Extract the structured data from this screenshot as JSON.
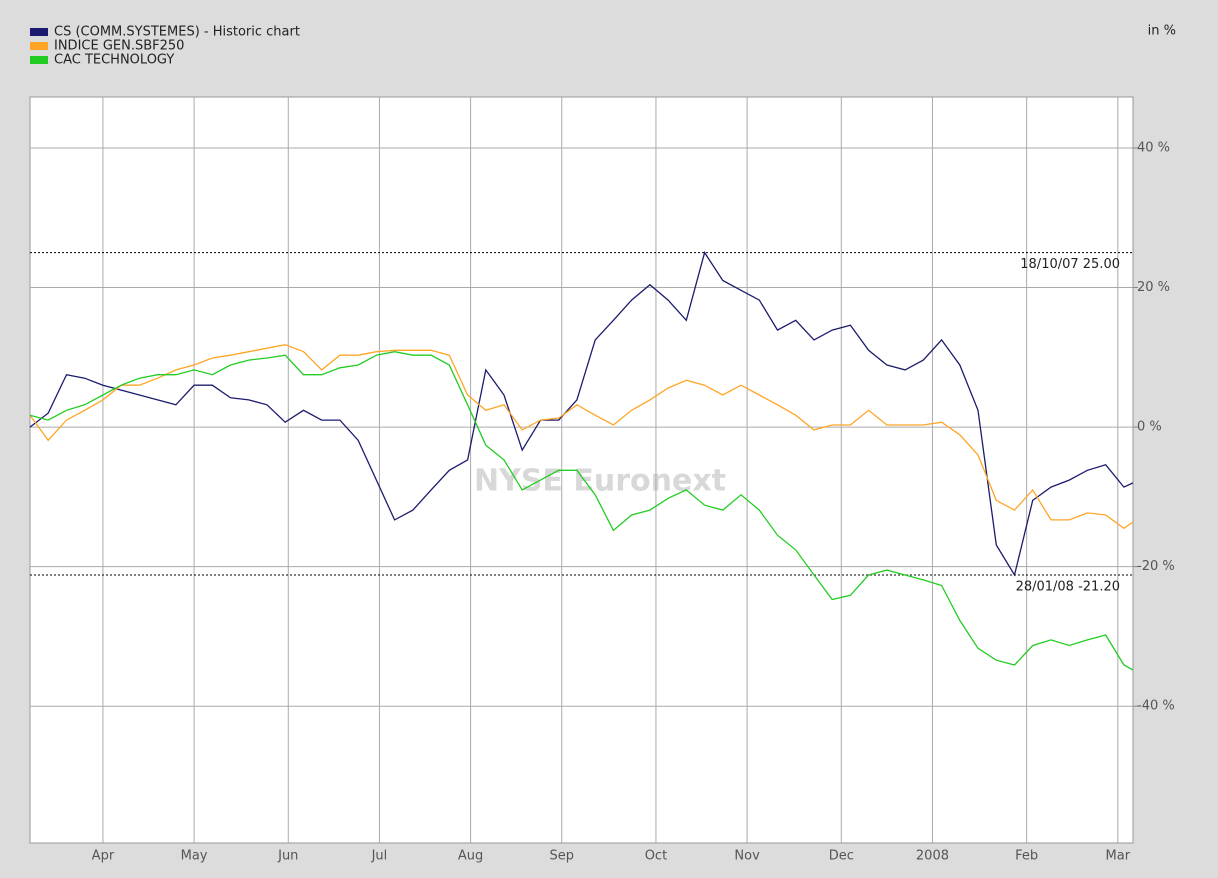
{
  "chart_data": {
    "type": "line",
    "axis_unit_label": "in %",
    "watermark": "NYSE Euronext",
    "x": [
      0,
      6,
      12,
      18,
      24,
      30,
      36,
      42,
      48,
      54,
      60,
      66,
      72,
      78,
      84,
      90,
      96,
      102,
      108,
      114,
      120,
      126,
      132,
      138,
      144,
      150,
      156,
      162,
      168,
      174,
      180,
      186,
      192,
      198,
      204,
      210,
      216,
      222,
      228,
      234,
      240,
      246,
      252,
      258,
      264,
      270,
      276,
      282,
      288,
      294,
      300,
      306,
      312,
      318,
      324,
      330,
      336,
      342,
      348,
      354,
      360,
      363
    ],
    "xlim": [
      0,
      363
    ],
    "xticks": [
      {
        "value": 24,
        "label": "Apr"
      },
      {
        "value": 54,
        "label": "May"
      },
      {
        "value": 85,
        "label": "Jun"
      },
      {
        "value": 115,
        "label": "Jul"
      },
      {
        "value": 145,
        "label": "Aug"
      },
      {
        "value": 175,
        "label": "Sep"
      },
      {
        "value": 206,
        "label": "Oct"
      },
      {
        "value": 236,
        "label": "Nov"
      },
      {
        "value": 267,
        "label": "Dec"
      },
      {
        "value": 297,
        "label": "2008"
      },
      {
        "value": 328,
        "label": "Feb"
      },
      {
        "value": 358,
        "label": "Mar"
      }
    ],
    "ylim": [
      -59.6,
      47.3
    ],
    "yticks": [
      {
        "value": 40,
        "label": "40 %"
      },
      {
        "value": 20,
        "label": "20 %"
      },
      {
        "value": 0,
        "label": "0 %"
      },
      {
        "value": -20,
        "label": "-20 %"
      },
      {
        "value": -40,
        "label": "-40 %"
      }
    ],
    "grid": true,
    "legend": "top-left",
    "reference_lines": [
      {
        "value": 25,
        "label": "18/10/07 25.00"
      },
      {
        "value": -21.2,
        "label": "28/01/08 -21.20"
      }
    ],
    "series": [
      {
        "name": "CS (COMM.SYSTEMES) - Historic chart",
        "color": "#1c1c6e",
        "values": [
          0,
          2,
          7.5,
          7,
          6,
          5.3,
          4.6,
          3.9,
          3.2,
          6,
          6,
          4.2,
          3.9,
          3.2,
          0.7,
          2.4,
          1,
          1,
          -1.9,
          -7.6,
          -13.3,
          -11.9,
          -9,
          -6.2,
          -4.7,
          8.2,
          4.6,
          -3.3,
          1,
          1,
          3.9,
          12.5,
          15.3,
          18.2,
          20.4,
          18.2,
          15.3,
          25,
          21,
          19.6,
          18.2,
          13.9,
          15.3,
          12.5,
          13.9,
          14.6,
          11,
          8.9,
          8.2,
          9.6,
          12.5,
          8.9,
          2.4,
          -16.9,
          -21.2,
          -10.5,
          -8.6,
          -7.6,
          -6.2,
          -5.4,
          -8.6,
          -8
        ]
      },
      {
        "name": "INDICE GEN.SBF250",
        "color": "#ffa526",
        "values": [
          1.7,
          -1.9,
          1,
          2.4,
          3.9,
          6,
          6,
          7,
          8.2,
          8.9,
          9.9,
          10.3,
          10.8,
          11.3,
          11.8,
          10.8,
          8.2,
          10.3,
          10.3,
          10.8,
          11,
          11,
          11,
          10.3,
          4.6,
          2.4,
          3.2,
          -0.4,
          1,
          1.3,
          3.2,
          1.7,
          0.3,
          2.4,
          3.9,
          5.6,
          6.7,
          6,
          4.6,
          6,
          4.6,
          3.2,
          1.7,
          -0.4,
          0.3,
          0.3,
          2.4,
          0.3,
          0.3,
          0.3,
          0.7,
          -1.1,
          -4,
          -10.5,
          -11.9,
          -9,
          -13.3,
          -13.3,
          -12.3,
          -12.6,
          -14.5,
          -13.6
        ]
      },
      {
        "name": "CAC TECHNOLOGY",
        "color": "#22cc22",
        "values": [
          1.7,
          1,
          2.4,
          3.2,
          4.6,
          6,
          7,
          7.5,
          7.5,
          8.2,
          7.5,
          8.9,
          9.6,
          9.9,
          10.3,
          7.5,
          7.5,
          8.5,
          8.9,
          10.3,
          10.8,
          10.3,
          10.3,
          8.9,
          3.2,
          -2.6,
          -4.7,
          -9,
          -7.6,
          -6.2,
          -6.2,
          -9.7,
          -14.8,
          -12.6,
          -11.9,
          -10.2,
          -9,
          -11.2,
          -11.9,
          -9.7,
          -11.9,
          -15.5,
          -17.6,
          -21.2,
          -24.7,
          -24.1,
          -21.2,
          -20.5,
          -21.2,
          -21.9,
          -22.7,
          -27.7,
          -31.7,
          -33.4,
          -34.1,
          -31.3,
          -30.5,
          -31.3,
          -30.5,
          -29.8,
          -34.1,
          -34.8
        ]
      }
    ]
  }
}
